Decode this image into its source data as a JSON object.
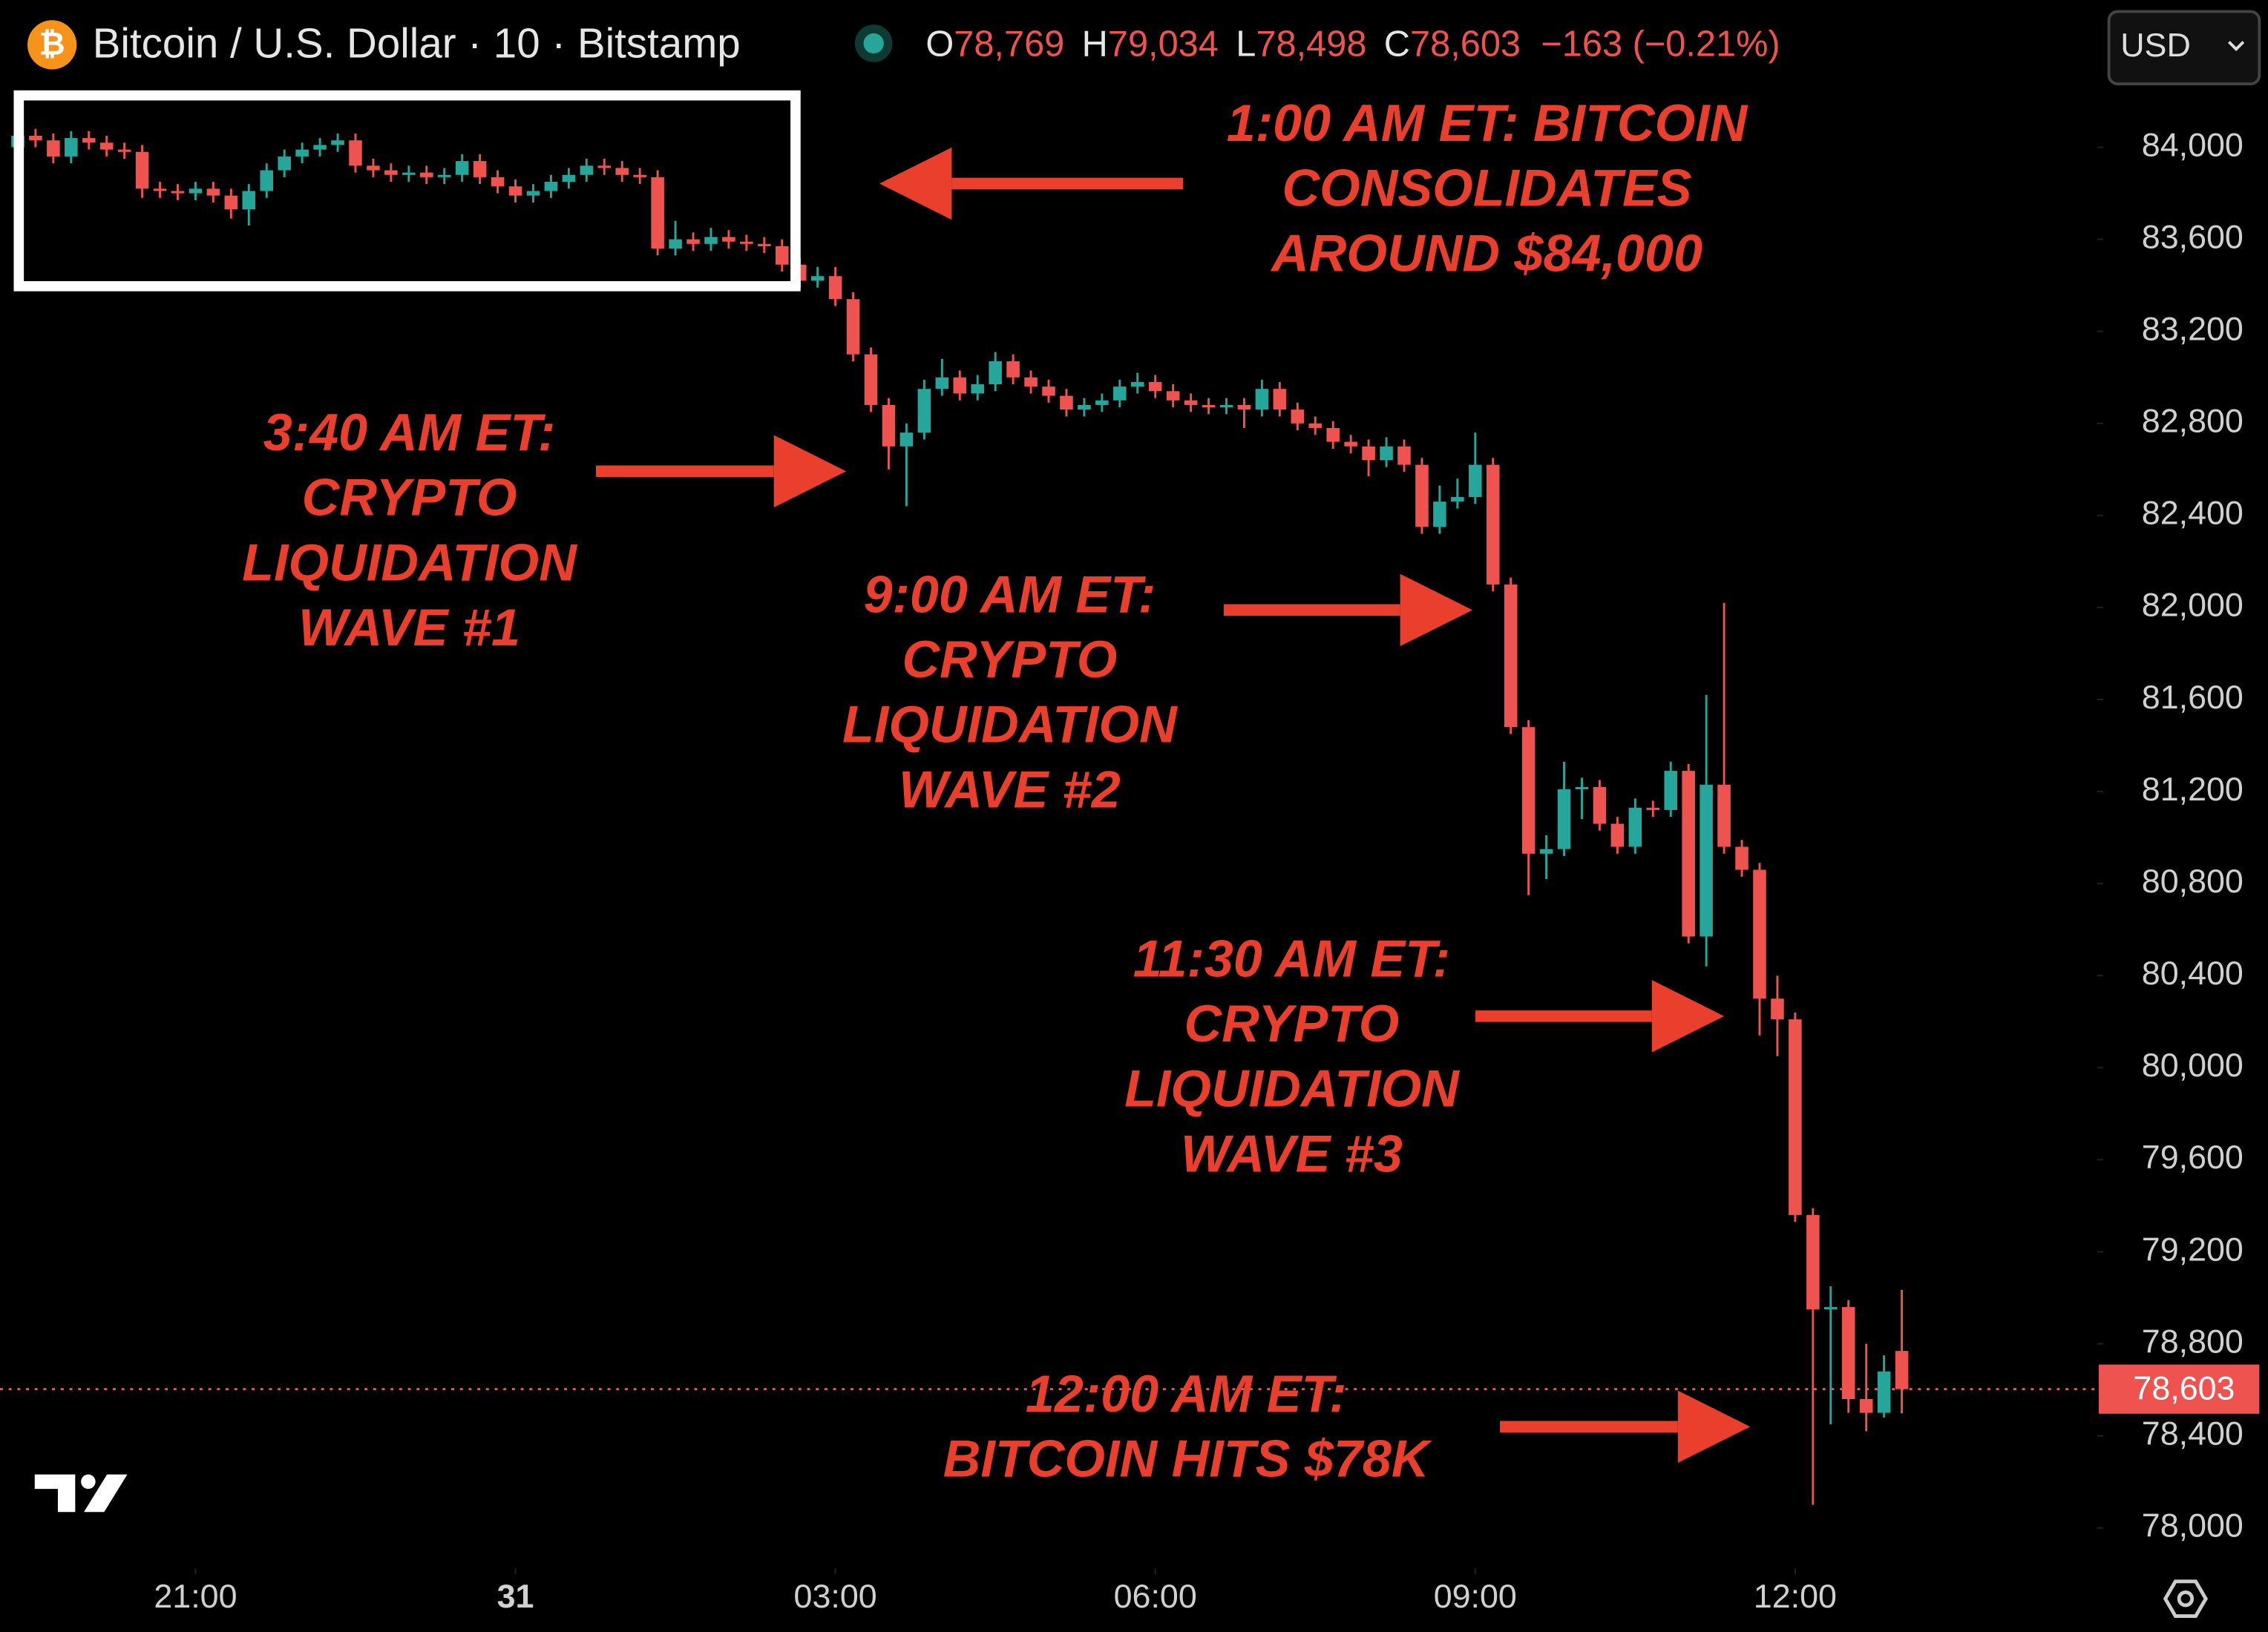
{
  "header": {
    "symbol": "Bitcoin / U.S. Dollar · 10 · Bitstamp",
    "fields": [
      {
        "key": "O",
        "value": "78,769"
      },
      {
        "key": "H",
        "value": "79,034"
      },
      {
        "key": "L",
        "value": "78,498"
      },
      {
        "key": "C",
        "value": "78,603"
      }
    ],
    "change": "−163 (−0.21%)",
    "currency": "USD"
  },
  "chart_data": {
    "type": "candlestick",
    "up_color": "#26a69a",
    "down_color": "#ef5350",
    "xlim": [
      -1,
      117
    ],
    "ylim": [
      77824,
      84640
    ],
    "xticks": [
      {
        "value": 10,
        "label": "21:00"
      },
      {
        "value": 28,
        "label": "31"
      },
      {
        "value": 46,
        "label": "03:00"
      },
      {
        "value": 64,
        "label": "06:00"
      },
      {
        "value": 82,
        "label": "09:00"
      },
      {
        "value": 100,
        "label": "12:00"
      }
    ],
    "yticks": [
      {
        "value": 78000,
        "label": "78,000"
      },
      {
        "value": 78400,
        "label": "78,400"
      },
      {
        "value": 78800,
        "label": "78,800"
      },
      {
        "value": 79200,
        "label": "79,200"
      },
      {
        "value": 79600,
        "label": "79,600"
      },
      {
        "value": 80000,
        "label": "80,000"
      },
      {
        "value": 80400,
        "label": "80,400"
      },
      {
        "value": 80800,
        "label": "80,800"
      },
      {
        "value": 81200,
        "label": "81,200"
      },
      {
        "value": 81600,
        "label": "81,600"
      },
      {
        "value": 82000,
        "label": "82,000"
      },
      {
        "value": 82400,
        "label": "82,400"
      },
      {
        "value": 82800,
        "label": "82,800"
      },
      {
        "value": 83200,
        "label": "83,200"
      },
      {
        "value": 83600,
        "label": "83,600"
      },
      {
        "value": 84000,
        "label": "84,000"
      }
    ],
    "last_price": {
      "value": 78603,
      "label": "78,603"
    },
    "ohlc": [
      [
        84000,
        84080,
        83970,
        84050
      ],
      [
        84050,
        84080,
        84000,
        84030
      ],
      [
        84030,
        84060,
        83930,
        83960
      ],
      [
        83960,
        84070,
        83930,
        84040
      ],
      [
        84040,
        84070,
        83990,
        84020
      ],
      [
        84020,
        84050,
        83960,
        83990
      ],
      [
        83990,
        84020,
        83950,
        83980
      ],
      [
        83980,
        84010,
        83780,
        83820
      ],
      [
        83820,
        83850,
        83780,
        83810
      ],
      [
        83810,
        83840,
        83770,
        83800
      ],
      [
        83800,
        83850,
        83770,
        83820
      ],
      [
        83820,
        83850,
        83760,
        83790
      ],
      [
        83790,
        83820,
        83690,
        83730
      ],
      [
        83730,
        83840,
        83660,
        83810
      ],
      [
        83810,
        83930,
        83780,
        83900
      ],
      [
        83900,
        83990,
        83870,
        83960
      ],
      [
        83960,
        84020,
        83930,
        83990
      ],
      [
        83990,
        84040,
        83960,
        84010
      ],
      [
        84010,
        84060,
        83980,
        84030
      ],
      [
        84030,
        84060,
        83890,
        83920
      ],
      [
        83920,
        83950,
        83870,
        83900
      ],
      [
        83900,
        83930,
        83850,
        83880
      ],
      [
        83880,
        83920,
        83850,
        83890
      ],
      [
        83890,
        83920,
        83840,
        83870
      ],
      [
        83870,
        83910,
        83840,
        83880
      ],
      [
        83880,
        83970,
        83850,
        83940
      ],
      [
        83940,
        83970,
        83840,
        83870
      ],
      [
        83870,
        83900,
        83800,
        83830
      ],
      [
        83830,
        83860,
        83760,
        83790
      ],
      [
        83790,
        83840,
        83760,
        83810
      ],
      [
        83810,
        83880,
        83780,
        83850
      ],
      [
        83850,
        83910,
        83820,
        83880
      ],
      [
        83880,
        83950,
        83850,
        83920
      ],
      [
        83920,
        83950,
        83880,
        83910
      ],
      [
        83910,
        83940,
        83850,
        83880
      ],
      [
        83880,
        83910,
        83840,
        83870
      ],
      [
        83870,
        83900,
        83530,
        83560
      ],
      [
        83560,
        83680,
        83530,
        83600
      ],
      [
        83600,
        83630,
        83550,
        83580
      ],
      [
        83580,
        83650,
        83550,
        83610
      ],
      [
        83610,
        83640,
        83560,
        83590
      ],
      [
        83590,
        83620,
        83550,
        83580
      ],
      [
        83580,
        83610,
        83540,
        83570
      ],
      [
        83570,
        83600,
        83460,
        83490
      ],
      [
        83490,
        83520,
        83390,
        83420
      ],
      [
        83420,
        83480,
        83390,
        83440
      ],
      [
        83440,
        83480,
        83310,
        83340
      ],
      [
        83340,
        83370,
        83070,
        83100
      ],
      [
        83100,
        83130,
        82850,
        82880
      ],
      [
        82880,
        82910,
        82600,
        82700
      ],
      [
        82700,
        82800,
        82440,
        82760
      ],
      [
        82760,
        82990,
        82730,
        82950
      ],
      [
        82950,
        83080,
        82920,
        83000
      ],
      [
        83000,
        83030,
        82900,
        82930
      ],
      [
        82930,
        83010,
        82900,
        82970
      ],
      [
        82970,
        83110,
        82940,
        83070
      ],
      [
        83070,
        83100,
        82970,
        83000
      ],
      [
        83000,
        83030,
        82930,
        82960
      ],
      [
        82960,
        82990,
        82890,
        82920
      ],
      [
        82920,
        82950,
        82830,
        82860
      ],
      [
        82860,
        82910,
        82830,
        82880
      ],
      [
        82880,
        82930,
        82850,
        82900
      ],
      [
        82900,
        82990,
        82870,
        82960
      ],
      [
        82960,
        83020,
        82930,
        82980
      ],
      [
        82980,
        83010,
        82910,
        82940
      ],
      [
        82940,
        82970,
        82870,
        82900
      ],
      [
        82900,
        82930,
        82850,
        82880
      ],
      [
        82880,
        82910,
        82840,
        82870
      ],
      [
        82870,
        82910,
        82840,
        82880
      ],
      [
        82880,
        82910,
        82780,
        82860
      ],
      [
        82860,
        82990,
        82830,
        82950
      ],
      [
        82950,
        82980,
        82830,
        82860
      ],
      [
        82860,
        82890,
        82770,
        82800
      ],
      [
        82800,
        82830,
        82750,
        82780
      ],
      [
        82780,
        82810,
        82690,
        82720
      ],
      [
        82720,
        82750,
        82670,
        82700
      ],
      [
        82700,
        82730,
        82570,
        82640
      ],
      [
        82640,
        82740,
        82610,
        82700
      ],
      [
        82700,
        82730,
        82590,
        82620
      ],
      [
        82620,
        82650,
        82320,
        82350
      ],
      [
        82350,
        82530,
        82320,
        82460
      ],
      [
        82460,
        82560,
        82430,
        82480
      ],
      [
        82480,
        82760,
        82450,
        82620
      ],
      [
        82620,
        82650,
        82070,
        82100
      ],
      [
        82100,
        82130,
        81450,
        81480
      ],
      [
        81480,
        81510,
        80750,
        80930
      ],
      [
        80930,
        81010,
        80820,
        80950
      ],
      [
        80950,
        81330,
        80920,
        81210
      ],
      [
        81210,
        81260,
        81080,
        81220
      ],
      [
        81220,
        81250,
        81030,
        81060
      ],
      [
        81060,
        81090,
        80930,
        80960
      ],
      [
        80960,
        81170,
        80930,
        81130
      ],
      [
        81130,
        81160,
        81090,
        81120
      ],
      [
        81120,
        81330,
        81090,
        81290
      ],
      [
        81290,
        81320,
        80540,
        80570
      ],
      [
        80570,
        81620,
        80440,
        81230
      ],
      [
        81230,
        82020,
        80930,
        80960
      ],
      [
        80960,
        80990,
        80830,
        80860
      ],
      [
        80860,
        80890,
        80140,
        80300
      ],
      [
        80300,
        80400,
        80050,
        80210
      ],
      [
        80210,
        80240,
        79330,
        79360
      ],
      [
        79360,
        79390,
        78100,
        78950
      ],
      [
        78950,
        79050,
        78450,
        78960
      ],
      [
        78960,
        78990,
        78500,
        78560
      ],
      [
        78560,
        78800,
        78420,
        78500
      ],
      [
        78500,
        78750,
        78480,
        78680
      ],
      [
        78769,
        79034,
        78498,
        78603
      ]
    ],
    "annotations": [
      {
        "lines": [
          "1:00 AM ET: BITCOIN",
          "CONSOLIDATES",
          "AROUND $84,000"
        ]
      },
      {
        "lines": [
          "3:40 AM ET:",
          "CRYPTO",
          "LIQUIDATION",
          "WAVE #1"
        ]
      },
      {
        "lines": [
          "9:00 AM ET:",
          "CRYPTO",
          "LIQUIDATION",
          "WAVE #2"
        ]
      },
      {
        "lines": [
          "11:30 AM ET:",
          "CRYPTO",
          "LIQUIDATION",
          "WAVE #3"
        ]
      },
      {
        "lines": [
          "12:00 AM ET:",
          "BITCOIN HITS $78K"
        ]
      }
    ]
  }
}
